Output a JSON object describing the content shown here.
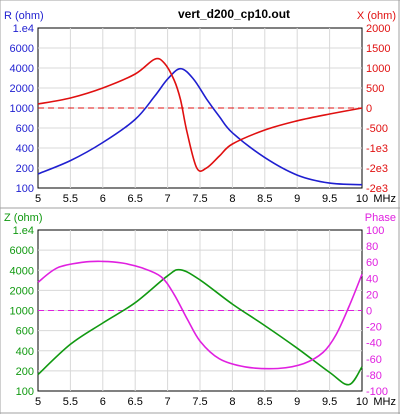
{
  "window_title": "vert_d200_cp10.out",
  "xaxis": {
    "unit": "MHz",
    "ticks": [
      "5",
      "5.5",
      "6",
      "6.5",
      "7",
      "7.5",
      "8",
      "8.5",
      "9",
      "9.5",
      "10"
    ],
    "range": [
      5,
      10
    ]
  },
  "colors": {
    "r": "#1f1fd0",
    "x": "#e01010",
    "z": "#119911",
    "phase": "#e020e0"
  },
  "chart_data": [
    {
      "type": "line",
      "left_label": "R (ohm)",
      "right_label": "X (ohm)",
      "left_ticks": [
        "1.e4",
        "6000",
        "4000",
        "2000",
        "1000",
        "600",
        "400",
        "200",
        "100"
      ],
      "right_ticks": [
        "2000",
        "1500",
        "1000",
        "500",
        "0",
        "-500",
        "-1e3",
        "-2e3",
        "-2e3"
      ],
      "left_scale": "log",
      "left_range": [
        100,
        10000
      ],
      "right_range": [
        -2000,
        2000
      ],
      "reference_line": {
        "axis": "right",
        "value": 0
      },
      "series": [
        {
          "key": "R",
          "axis": "left",
          "x": [
            5.0,
            5.5,
            6.0,
            6.5,
            6.8,
            7.0,
            7.2,
            7.4,
            7.6,
            7.8,
            8.0,
            8.5,
            9.0,
            9.5,
            10.0
          ],
          "y": [
            150,
            220,
            370,
            720,
            1400,
            2300,
            3100,
            2300,
            1300,
            780,
            490,
            240,
            145,
            115,
            110
          ]
        },
        {
          "key": "X",
          "axis": "right",
          "x": [
            5.0,
            5.5,
            6.0,
            6.5,
            6.8,
            6.95,
            7.1,
            7.2,
            7.3,
            7.45,
            7.6,
            7.8,
            8.0,
            8.5,
            9.0,
            9.5,
            10.0
          ],
          "y": [
            100,
            250,
            500,
            850,
            1220,
            1120,
            700,
            200,
            -600,
            -1500,
            -1500,
            -1200,
            -900,
            -550,
            -320,
            -150,
            0
          ]
        }
      ]
    },
    {
      "type": "line",
      "left_label": "Z (ohm)",
      "right_label": "Phase",
      "left_ticks": [
        "1.e4",
        "6000",
        "4000",
        "2000",
        "1000",
        "600",
        "400",
        "200",
        "100"
      ],
      "right_ticks": [
        "100",
        "80",
        "60",
        "40",
        "20",
        "0",
        "-20",
        "-40",
        "-60",
        "-80",
        "-100"
      ],
      "left_scale": "log",
      "left_range": [
        100,
        10000
      ],
      "right_range": [
        -100,
        100
      ],
      "reference_line": {
        "axis": "right",
        "value": 0
      },
      "series": [
        {
          "key": "Z",
          "axis": "left",
          "x": [
            5.0,
            5.5,
            6.0,
            6.5,
            7.0,
            7.2,
            7.5,
            8.0,
            8.5,
            9.0,
            9.5,
            9.8,
            10.0
          ],
          "y": [
            160,
            380,
            700,
            1250,
            2700,
            3200,
            2400,
            1200,
            650,
            340,
            170,
            120,
            200
          ]
        },
        {
          "key": "Phase",
          "axis": "right",
          "x": [
            5.0,
            5.3,
            5.7,
            6.0,
            6.3,
            6.6,
            6.9,
            7.1,
            7.3,
            7.5,
            7.8,
            8.2,
            8.7,
            9.1,
            9.4,
            9.6,
            9.8,
            10.0
          ],
          "y": [
            35,
            53,
            60,
            61,
            59,
            53,
            42,
            20,
            -10,
            -38,
            -60,
            -70,
            -72,
            -66,
            -52,
            -30,
            5,
            45
          ]
        }
      ]
    }
  ]
}
